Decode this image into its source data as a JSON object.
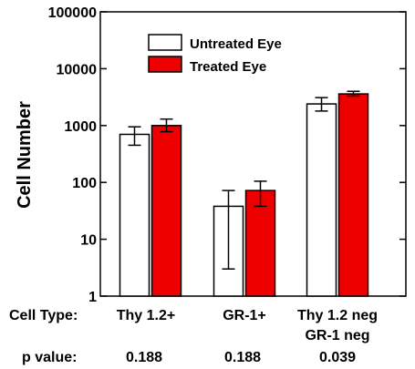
{
  "chart_data": {
    "type": "bar",
    "ylabel": "Cell Number",
    "yscale": "log",
    "ylim": [
      1,
      100000
    ],
    "y_ticks": [
      "1",
      "10",
      "100",
      "1000",
      "10000",
      "100000"
    ],
    "y_tick_values": [
      1,
      10,
      100,
      1000,
      10000,
      100000
    ],
    "categories": [
      "Thy 1.2+",
      "GR-1+",
      "Thy 1.2 neg"
    ],
    "category_sublabels": [
      "",
      "",
      "GR-1 neg"
    ],
    "row_label_categories": "Cell Type:",
    "row_label_pvalue": "p value:",
    "p_values": [
      "0.188",
      "0.188",
      "0.039"
    ],
    "legend_position": "top-center",
    "grid": false,
    "series": [
      {
        "name": "Untreated Eye",
        "color": "#ffffff",
        "values": [
          700,
          38,
          2400
        ],
        "err_low": [
          450,
          3,
          1800
        ],
        "err_high": [
          950,
          72,
          3100
        ]
      },
      {
        "name": "Treated Eye",
        "color": "#ee0000",
        "values": [
          1000,
          72,
          3600
        ],
        "err_low": [
          780,
          38,
          3300
        ],
        "err_high": [
          1300,
          105,
          4000
        ]
      }
    ]
  }
}
